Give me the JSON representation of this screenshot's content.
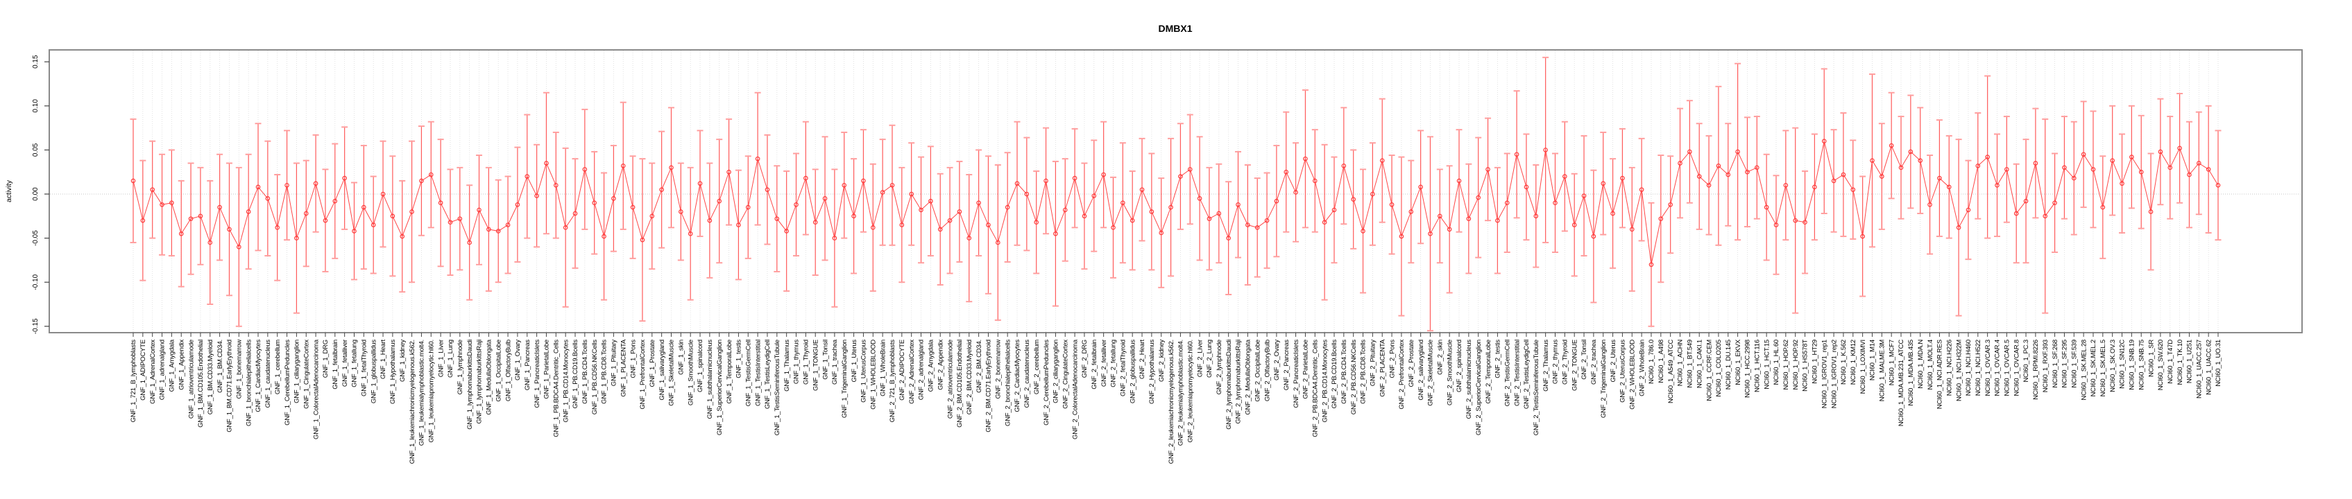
{
  "title": "DMBX1",
  "y_axis": {
    "label": "activity",
    "tick_labels": [
      "-0.15",
      "-0.10",
      "-0.05",
      "0.00",
      "0.05",
      "0.10",
      "0.15"
    ],
    "ticks": [
      -0.15,
      -0.1,
      -0.05,
      0.0,
      0.05,
      0.1,
      0.15
    ]
  },
  "colors": {
    "errorbar_stem": "#ff5a5a",
    "errorbar_cap": "#ff9e9e",
    "series_line": "#ff4747",
    "point_stroke": "#ff3a3a",
    "gridline": "#dadada",
    "zero_line": "#c4c4c4",
    "plot_border": "#8a8a8a",
    "axis_tick": "#444444",
    "text": "#000000"
  },
  "chart_data": {
    "type": "line",
    "title": "DMBX1",
    "xlabel": "",
    "ylabel": "activity",
    "ylim": [
      -0.157,
      0.163
    ],
    "yticks": [
      -0.15,
      -0.1,
      -0.05,
      0.0,
      0.05,
      0.1,
      0.15
    ],
    "ytick_labels": [
      "-0.15",
      "-0.10",
      "-0.05",
      "0.00",
      "0.05",
      "0.10",
      "0.15"
    ],
    "grid": "dotted vertical line per category, dotted horizontal zero line",
    "legend": "none",
    "marker": "open-circle with symmetric error bars (capped)",
    "categories": [
      "GNF_1_721_B_lymphoblasts",
      "GNF_1_ADIPOCYTE",
      "GNF_1_AdrenalCortex",
      "GNF_1_adrenalgland",
      "GNF_1_Amygdala",
      "GNF_1_Appendix",
      "GNF_1_atrioventricularnode",
      "GNF_1_BM.CD105.Endothelial",
      "GNF_1_BM.CD33.Myeloid",
      "GNF_1_BM.CD34.",
      "GNF_1_BM.CD71.EarlyErythroid",
      "GNF_1_bonemarrow",
      "GNF_1_bronchialepithelialcells",
      "GNF_1_CardiacMyocytes",
      "GNF_1_caudatenucleus",
      "GNF_1_cerebellum",
      "GNF_1_CerebellumPeduncles",
      "GNF_1_ciliaryganglion",
      "GNF_1_CingulateCortex",
      "GNF_1_ColorectalAdenocarcinoma",
      "GNF_1_DRG",
      "GNF_1_fetalbrain",
      "GNF_1_fetalliver",
      "GNF_1_fetallung",
      "GNF_1_fetalThyroid",
      "GNF_1_globuspallidus",
      "GNF_1_Heart",
      "GNF_1_Hypothalamus",
      "GNF_1_kidney",
      "GNF_1_leukemiachronicmyelogenous.k562.",
      "GNF_1_leukemialymphoblastic.molt4.",
      "GNF_1_leukemiapromyelocytic.hl60.",
      "GNF_1_Liver",
      "GNF_1_Lung",
      "GNF_1_lymphnode",
      "GNF_1_lymphomaburkittsDaudi",
      "GNF_1_lymphomaburkittsRaji",
      "GNF_1_MedullaOblongata",
      "GNF_1_OccipitalLobe",
      "GNF_1_OlfactoryBulb",
      "GNF_1_Ovary",
      "GNF_1_Pancreas",
      "GNF_1_PancreaticIslets",
      "GNF_1_ParietalLobe",
      "GNF_1_PB.BDCA4.Dentritic_Cells",
      "GNF_1_PB.CD14.Monocytes",
      "GNF_1_PB.CD19.Bcells",
      "GNF_1_PB.CD4.Tcells",
      "GNF_1_PB.CD56.NKCells",
      "GNF_1_PB.CD8.Tcells",
      "GNF_1_Pituitary",
      "GNF_1_PLACENTA",
      "GNF_1_Pons",
      "GNF_1_PrefrontalCortex",
      "GNF_1_Prostate",
      "GNF_1_salivarygland",
      "GNF_1_SkeletalMuscle",
      "GNF_1_skin",
      "GNF_1_SmoothMuscle",
      "GNF_1_spinalcord",
      "GNF_1_subthalamicnucleus",
      "GNF_1_SuperiorCervicalGanglion",
      "GNF_1_TemporalLobe",
      "GNF_1_testis",
      "GNF_1_TestisGermCell",
      "GNF_1_TestisInterstitial",
      "GNF_1_TestisLeydigCell",
      "GNF_1_TestisSeminiferousTubule",
      "GNF_1_Thalamus",
      "GNF_1_thymus",
      "GNF_1_Thyroid",
      "GNF_1_TONGUE",
      "GNF_1_Tonsil",
      "GNF_1_trachea",
      "GNF_1_TrigeminalGanglion",
      "GNF_1_Uterus",
      "GNF_1_UterusCorpus",
      "GNF_1_WHOLEBLOOD",
      "GNF_1_WholeBrain",
      "GNF_2_721_B_lymphoblasts",
      "GNF_2_ADIPOCYTE",
      "GNF_2_AdrenalCortex",
      "GNF_2_adrenalgland",
      "GNF_2_Amygdala",
      "GNF_2_Appendix",
      "GNF_2_atrioventricularnode",
      "GNF_2_BM.CD105.Endothelial",
      "GNF_2_BM.CD33.Myeloid",
      "GNF_2_BM.CD34.",
      "GNF_2_BM.CD71.EarlyErythroid",
      "GNF_2_bonemarrow",
      "GNF_2_bronchialepithelialcells",
      "GNF_2_CardiacMyocytes",
      "GNF_2_caudatenucleus",
      "GNF_2_cerebellum",
      "GNF_2_CerebellumPeduncles",
      "GNF_2_ciliaryganglion",
      "GNF_2_CingulateCortex",
      "GNF_2_ColorectalAdenocarcinoma",
      "GNF_2_DRG",
      "GNF_2_fetalbrain",
      "GNF_2_fetalliver",
      "GNF_2_fetallung",
      "GNF_2_fetalThyroid",
      "GNF_2_globuspallidus",
      "GNF_2_Heart",
      "GNF_2_Hypothalamus",
      "GNF_2_kidney",
      "GNF_2_leukemiachronicmyelogenous.k562.",
      "GNF_2_leukemialymphoblastic.molt4.",
      "GNF_2_leukemiapromyelocytic.hl60.",
      "GNF_2_Liver",
      "GNF_2_Lung",
      "GNF_2_lymphnode",
      "GNF_2_lymphomaburkittsDaudi",
      "GNF_2_lymphomaburkittsRaji",
      "GNF_2_MedullaOblongata",
      "GNF_2_OccipitalLobe",
      "GNF_2_OlfactoryBulb",
      "GNF_2_Ovary",
      "GNF_2_Pancreas",
      "GNF_2_PancreaticIslets",
      "GNF_2_ParietalLobe",
      "GNF_2_PB.BDCA4.Dentritic_Cells",
      "GNF_2_PB.CD14.Monocytes",
      "GNF_2_PB.CD19.Bcells",
      "GNF_2_PB.CD4.Tcells",
      "GNF_2_PB.CD56.NKCells",
      "GNF_2_PB.CD8.Tcells",
      "GNF_2_Pituitary",
      "GNF_2_PLACENTA",
      "GNF_2_Pons",
      "GNF_2_PrefrontalCortex",
      "GNF_2_Prostate",
      "GNF_2_salivarygland",
      "GNF_2_SkeletalMuscle",
      "GNF_2_skin",
      "GNF_2_SmoothMuscle",
      "GNF_2_spinalcord",
      "GNF_2_subthalamicnucleus",
      "GNF_2_SuperiorCervicalGanglion",
      "GNF_2_TemporalLobe",
      "GNF_2_testis",
      "GNF_2_TestisGermCell",
      "GNF_2_TestisInterstitial",
      "GNF_2_TestisLeydigCell",
      "GNF_2_TestisSeminiferousTubule",
      "GNF_2_Thalamus",
      "GNF_2_thymus",
      "GNF_2_Thyroid",
      "GNF_2_TONGUE",
      "GNF_2_Tonsil",
      "GNF_2_trachea",
      "GNF_2_TrigeminalGanglion",
      "GNF_2_Uterus",
      "GNF_2_UterusCorpus",
      "GNF_2_WHOLEBLOOD",
      "GNF_2_WholeBrain",
      "NCI60_1_786.0",
      "NCI60_1_A498",
      "NCI60_1_A549_ATCC",
      "NCI60_1_ACHN",
      "NCI60_1_BT.549",
      "NCI60_1_CAKI.1",
      "NCI60_1_CCRF.CEM",
      "NCI60_1_COLO205",
      "NCI60_1_DU.145",
      "NCI60_1_EKVX",
      "NCI60_1_HCC.2998",
      "NCI60_1_HCT.116",
      "NCI60_1_HCT.15",
      "NCI60_1_HL.60",
      "NCI60_1_HOP.62",
      "NCI60_1_HOP.92",
      "NCI60_1_HS578T",
      "NCI60_1_HT29",
      "NCI60_1_IGROV1_rep1",
      "NCI60_1_IGROV1_rep2",
      "NCI60_1_K.562",
      "NCI60_1_KM12",
      "NCI60_1_LOXIMVI",
      "NCI60_1_M14",
      "NCI60_1_MALME.3M",
      "NCI60_1_MCF7",
      "NCI60_1_MDA.MB.231_ATCC",
      "NCI60_1_MDA.MB.435",
      "NCI60_1_MDA.N",
      "NCI60_1_MOLT.4",
      "NCI60_1_NCI.ADR.RES",
      "NCI60_1_NCI.H226",
      "NCI60_1_NCI.H322M",
      "NCI60_1_NCI.H460",
      "NCI60_1_NCI.H522",
      "NCI60_1_OVCAR.3",
      "NCI60_1_OVCAR.4",
      "NCI60_1_OVCAR.5",
      "NCI60_1_OVCAR.8",
      "NCI60_1_PC.3",
      "NCI60_1_RPMI.8226",
      "NCI60_1_RXF.393",
      "NCI60_1_SF.268",
      "NCI60_1_SF.295",
      "NCI60_1_SF.539",
      "NCI60_1_SK.MEL.28",
      "NCI60_1_SK.MEL.2",
      "NCI60_1_SK.MEL.5",
      "NCI60_1_SK.OV.3",
      "NCI60_1_SN12C",
      "NCI60_1_SNB.19",
      "NCI60_1_SNB.75",
      "NCI60_1_SR",
      "NCI60_1_SW.620",
      "NCI60_1_T47D",
      "NCI60_1_TK.10",
      "NCI60_1_U251",
      "NCI60_1_UACC.257",
      "NCI60_1_UACC.62",
      "NCI60_1_UO.31"
    ],
    "series": [
      {
        "name": "activity",
        "values": [
          0.015,
          -0.03,
          0.005,
          -0.012,
          -0.01,
          -0.045,
          -0.028,
          -0.025,
          -0.055,
          -0.015,
          -0.04,
          -0.06,
          -0.02,
          0.008,
          -0.005,
          -0.038,
          0.01,
          -0.05,
          -0.022,
          0.012,
          -0.03,
          -0.008,
          0.018,
          -0.042,
          -0.015,
          -0.035,
          0.0,
          -0.025,
          -0.048,
          -0.02,
          0.015,
          0.022,
          -0.01,
          -0.032,
          -0.028,
          -0.055,
          -0.018,
          -0.04,
          -0.042,
          -0.035,
          -0.012,
          0.02,
          -0.002,
          0.035,
          0.01,
          -0.038,
          -0.022,
          0.028,
          -0.01,
          -0.048,
          -0.005,
          0.032,
          -0.015,
          -0.052,
          -0.025,
          0.005,
          0.03,
          -0.02,
          -0.045,
          0.012,
          -0.03,
          -0.008,
          0.025,
          -0.035,
          -0.015,
          0.04,
          0.005,
          -0.028,
          -0.042,
          -0.012,
          0.018,
          -0.032,
          -0.005,
          -0.05,
          0.01,
          -0.025,
          0.015,
          -0.038,
          0.002,
          0.01,
          -0.035,
          0.0,
          -0.018,
          -0.008,
          -0.04,
          -0.03,
          -0.02,
          -0.05,
          -0.01,
          -0.035,
          -0.055,
          -0.015,
          0.012,
          0.0,
          -0.032,
          0.015,
          -0.045,
          -0.018,
          0.018,
          -0.025,
          -0.002,
          0.022,
          -0.038,
          -0.01,
          -0.03,
          0.005,
          -0.02,
          -0.044,
          -0.015,
          0.02,
          0.028,
          -0.005,
          -0.028,
          -0.022,
          -0.05,
          -0.012,
          -0.035,
          -0.038,
          -0.03,
          -0.008,
          0.025,
          0.002,
          0.04,
          0.015,
          -0.032,
          -0.018,
          0.032,
          -0.006,
          -0.042,
          0.0,
          0.038,
          -0.012,
          -0.048,
          -0.02,
          0.008,
          -0.045,
          -0.025,
          -0.04,
          0.015,
          -0.028,
          -0.004,
          0.028,
          -0.03,
          -0.01,
          0.045,
          0.008,
          -0.025,
          0.05,
          -0.01,
          0.02,
          -0.035,
          -0.002,
          -0.048,
          0.012,
          -0.022,
          0.018,
          -0.04,
          0.005,
          -0.08,
          -0.028,
          -0.012,
          0.035,
          0.048,
          0.02,
          0.01,
          0.032,
          0.022,
          0.048,
          0.025,
          0.03,
          -0.015,
          -0.035,
          0.01,
          -0.03,
          -0.032,
          0.008,
          0.06,
          0.015,
          0.022,
          0.005,
          -0.048,
          0.038,
          0.02,
          0.055,
          0.03,
          0.048,
          0.038,
          -0.012,
          0.018,
          0.008,
          -0.038,
          -0.018,
          0.032,
          0.042,
          0.01,
          0.028,
          -0.022,
          -0.008,
          0.035,
          -0.025,
          -0.01,
          0.03,
          0.018,
          0.045,
          0.028,
          -0.015,
          0.038,
          0.012,
          0.042,
          0.025,
          -0.02,
          0.048,
          0.03,
          0.052,
          0.022,
          0.035,
          0.028,
          0.01
        ],
        "ci_half_width": [
          0.07,
          0.068,
          0.055,
          0.057,
          0.06,
          0.06,
          0.063,
          0.055,
          0.07,
          0.06,
          0.075,
          0.09,
          0.065,
          0.072,
          0.065,
          0.06,
          0.062,
          0.085,
          0.06,
          0.055,
          0.058,
          0.065,
          0.058,
          0.055,
          0.07,
          0.055,
          0.06,
          0.068,
          0.063,
          0.08,
          0.062,
          0.06,
          0.072,
          0.06,
          0.058,
          0.065,
          0.062,
          0.07,
          0.058,
          0.055,
          0.065,
          0.07,
          0.058,
          0.08,
          0.06,
          0.09,
          0.062,
          0.068,
          0.058,
          0.072,
          0.06,
          0.072,
          0.058,
          0.092,
          0.06,
          0.066,
          0.068,
          0.055,
          0.075,
          0.06,
          0.065,
          0.07,
          0.06,
          0.062,
          0.058,
          0.075,
          0.062,
          0.06,
          0.068,
          0.058,
          0.064,
          0.06,
          0.07,
          0.078,
          0.06,
          0.065,
          0.058,
          0.072,
          0.06,
          0.068,
          0.065,
          0.058,
          0.06,
          0.062,
          0.063,
          0.06,
          0.057,
          0.072,
          0.06,
          0.078,
          0.088,
          0.062,
          0.07,
          0.064,
          0.058,
          0.06,
          0.082,
          0.058,
          0.056,
          0.06,
          0.063,
          0.06,
          0.057,
          0.068,
          0.056,
          0.058,
          0.066,
          0.062,
          0.078,
          0.06,
          0.062,
          0.07,
          0.058,
          0.056,
          0.064,
          0.06,
          0.068,
          0.056,
          0.054,
          0.063,
          0.068,
          0.056,
          0.078,
          0.058,
          0.088,
          0.06,
          0.066,
          0.056,
          0.07,
          0.058,
          0.07,
          0.056,
          0.09,
          0.058,
          0.064,
          0.11,
          0.053,
          0.072,
          0.058,
          0.062,
          0.068,
          0.058,
          0.06,
          0.056,
          0.072,
          0.06,
          0.058,
          0.105,
          0.056,
          0.062,
          0.058,
          0.068,
          0.075,
          0.058,
          0.062,
          0.056,
          0.07,
          0.058,
          0.07,
          0.072,
          0.055,
          0.062,
          0.058,
          0.06,
          0.056,
          0.09,
          0.058,
          0.1,
          0.062,
          0.058,
          0.06,
          0.056,
          0.062,
          0.105,
          0.058,
          0.06,
          0.082,
          0.058,
          0.07,
          0.056,
          0.068,
          0.098,
          0.06,
          0.06,
          0.058,
          0.064,
          0.06,
          0.056,
          0.066,
          0.058,
          0.1,
          0.056,
          0.06,
          0.092,
          0.058,
          0.06,
          0.056,
          0.07,
          0.062,
          0.11,
          0.056,
          0.058,
          0.064,
          0.06,
          0.066,
          0.058,
          0.062,
          0.056,
          0.058,
          0.064,
          0.066,
          0.06,
          0.058,
          0.062,
          0.06,
          0.058,
          0.072,
          0.062
        ]
      }
    ]
  }
}
